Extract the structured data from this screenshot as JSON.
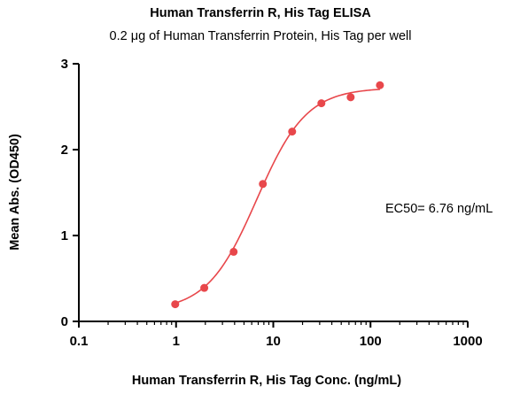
{
  "chart_data": {
    "type": "scatter",
    "title": "Human Transferrin R, His Tag ELISA",
    "subtitle": "0.2 μg of Human Transferrin Protein, His Tag per well",
    "xlabel": "Human Transferrin R, His Tag Conc. (ng/mL)",
    "ylabel": "Mean Abs. (OD450)",
    "x_scale": "log",
    "xlim": [
      0.1,
      1000
    ],
    "ylim": [
      0,
      3
    ],
    "x_ticks": [
      0.1,
      1,
      10,
      100,
      1000
    ],
    "x_tick_labels": [
      "0.1",
      "1",
      "10",
      "100",
      "1000"
    ],
    "y_ticks": [
      0,
      1,
      2,
      3
    ],
    "y_tick_labels": [
      "0",
      "1",
      "2",
      "3"
    ],
    "grid": false,
    "annotation": "EC50= 6.76 ng/mL",
    "series": [
      {
        "x": [
          0.98,
          1.95,
          3.91,
          7.81,
          15.63,
          31.25,
          62.5,
          125
        ],
        "y": [
          0.2,
          0.39,
          0.81,
          1.6,
          2.21,
          2.54,
          2.61,
          2.75
        ],
        "color": "#e8474b"
      }
    ],
    "fit": {
      "model": "4PL",
      "bottom": 0.12,
      "top": 2.72,
      "ec50": 6.76,
      "hill": 1.7,
      "x_range": [
        0.98,
        125
      ],
      "color": "#e8474b"
    }
  }
}
